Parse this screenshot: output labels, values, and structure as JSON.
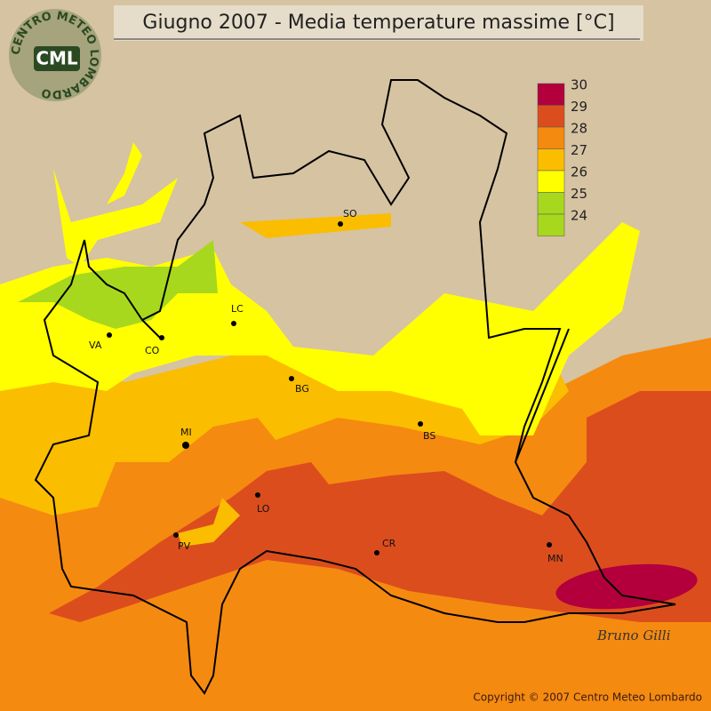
{
  "header": {
    "title": "Giugno 2007 - Media temperature massime [°C]"
  },
  "logo": {
    "ring_text": "CENTRO METEO LOMBARDO",
    "initials": "CML"
  },
  "legend": {
    "levels": [
      {
        "value": 30,
        "color": "#b3003c"
      },
      {
        "value": 29,
        "color": "#dc4d1e"
      },
      {
        "value": 28,
        "color": "#f58a10"
      },
      {
        "value": 27,
        "color": "#fbbd00"
      },
      {
        "value": 26,
        "color": "#ffff00"
      },
      {
        "value": 25,
        "color": "#a7d81e"
      },
      {
        "value": 24,
        "color": "#a7d81e"
      }
    ]
  },
  "cities": [
    "SO",
    "LC",
    "VA",
    "CO",
    "BG",
    "BS",
    "MI",
    "LO",
    "PV",
    "CR",
    "MN"
  ],
  "signature": "Bruno Gilli",
  "footer": {
    "copyright": "Copyright © 2007 Centro Meteo Lombardo"
  }
}
